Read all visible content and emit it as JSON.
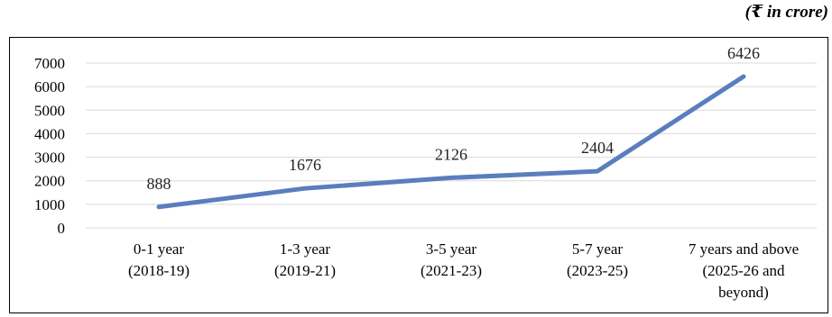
{
  "unit_note": "(₹ in crore)",
  "colors": {
    "line": "#5a7ebd",
    "grid": "#d9d9d9"
  },
  "chart_data": {
    "type": "line",
    "categories": [
      [
        "0-1 year",
        "(2018-19)"
      ],
      [
        "1-3 year",
        "(2019-21)"
      ],
      [
        "3-5 year",
        "(2021-23)"
      ],
      [
        "5-7 year",
        "(2023-25)"
      ],
      [
        "7 years and above",
        "(2025-26 and",
        "beyond)"
      ]
    ],
    "series": [
      {
        "values": [
          888,
          1676,
          2126,
          2404,
          6426
        ]
      }
    ],
    "ylim": [
      0,
      7000
    ],
    "yticks": [
      0,
      1000,
      2000,
      3000,
      4000,
      5000,
      6000,
      7000
    ],
    "grid": true,
    "legend": "none"
  }
}
